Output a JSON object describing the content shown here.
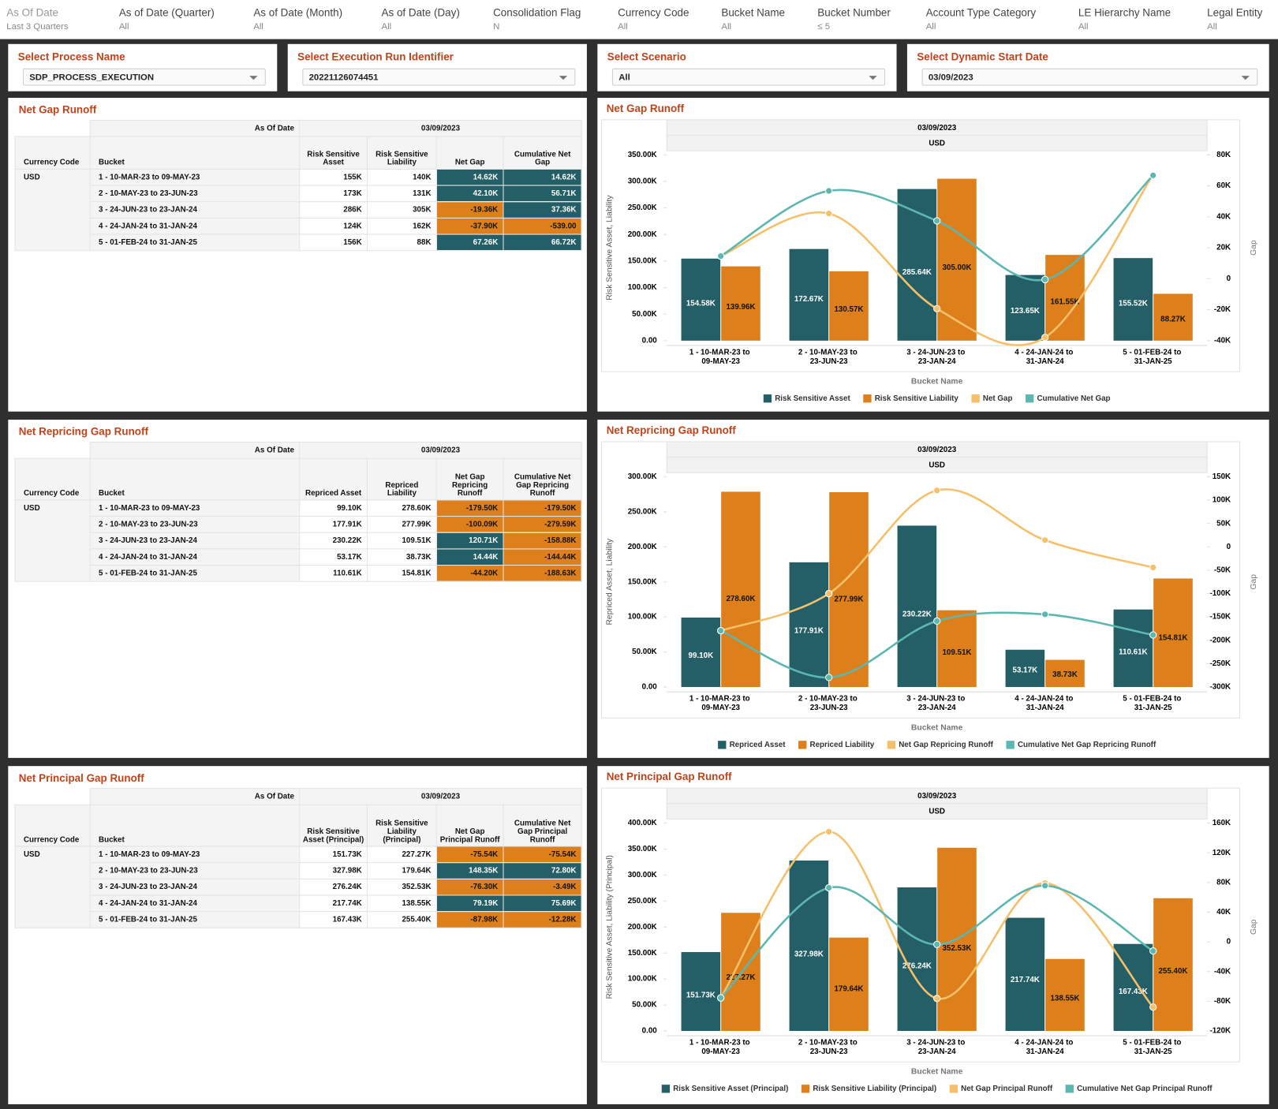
{
  "filters": [
    {
      "label": "As Of Date",
      "value": "Last 3 Quarters"
    },
    {
      "label": "As of Date (Quarter)",
      "value": "All"
    },
    {
      "label": "As of Date (Month)",
      "value": "All"
    },
    {
      "label": "As of Date (Day)",
      "value": "All"
    },
    {
      "label": "Consolidation Flag",
      "value": "N"
    },
    {
      "label": "Currency Code",
      "value": "All"
    },
    {
      "label": "Bucket Name",
      "value": "All"
    },
    {
      "label": "Bucket Number",
      "value": "≤ 5"
    },
    {
      "label": "Account Type Category",
      "value": "All"
    },
    {
      "label": "LE Hierarchy Name",
      "value": "All"
    },
    {
      "label": "Legal Entity",
      "value": "All"
    }
  ],
  "selectors": [
    {
      "label": "Select Process Name",
      "value": "SDP_PROCESS_EXECUTION"
    },
    {
      "label": "Select Execution Run Identifier",
      "value": "20221126074451"
    },
    {
      "label": "Select Scenario",
      "value": "All"
    },
    {
      "label": "Select Dynamic Start Date",
      "value": "03/09/2023"
    }
  ],
  "tables": [
    {
      "title": "Net Gap Runoff",
      "as_of_header": "As Of Date",
      "date": "03/09/2023",
      "currency_header": "Currency Code",
      "bucket_header": "Bucket",
      "columns": [
        "Risk Sensitive Asset",
        "Risk Sensitive Liability",
        "Net Gap",
        "Cumulative Net Gap"
      ],
      "currency": "USD",
      "rows": [
        {
          "bucket": "1 - 10-MAR-23 to 09-MAY-23",
          "cells": [
            "155K",
            "140K",
            "14.62K",
            "14.62K"
          ]
        },
        {
          "bucket": "2 - 10-MAY-23 to 23-JUN-23",
          "cells": [
            "173K",
            "131K",
            "42.10K",
            "56.71K"
          ]
        },
        {
          "bucket": "3 - 24-JUN-23 to 23-JAN-24",
          "cells": [
            "286K",
            "305K",
            "-19.36K",
            "37.36K"
          ]
        },
        {
          "bucket": "4 - 24-JAN-24 to 31-JAN-24",
          "cells": [
            "124K",
            "162K",
            "-37.90K",
            "-539.00"
          ]
        },
        {
          "bucket": "5 - 01-FEB-24 to 31-JAN-25",
          "cells": [
            "156K",
            "88K",
            "67.26K",
            "66.72K"
          ]
        }
      ]
    },
    {
      "title": "Net Repricing Gap Runoff",
      "as_of_header": "As Of Date",
      "date": "03/09/2023",
      "currency_header": "Currency Code",
      "bucket_header": "Bucket",
      "columns": [
        "Repriced Asset",
        "Repriced Liability",
        "Net Gap Repricing Runoff",
        "Cumulative Net Gap Repricing Runoff"
      ],
      "currency": "USD",
      "rows": [
        {
          "bucket": "1 - 10-MAR-23 to 09-MAY-23",
          "cells": [
            "99.10K",
            "278.60K",
            "-179.50K",
            "-179.50K"
          ]
        },
        {
          "bucket": "2 - 10-MAY-23 to 23-JUN-23",
          "cells": [
            "177.91K",
            "277.99K",
            "-100.09K",
            "-279.59K"
          ]
        },
        {
          "bucket": "3 - 24-JUN-23 to 23-JAN-24",
          "cells": [
            "230.22K",
            "109.51K",
            "120.71K",
            "-158.88K"
          ]
        },
        {
          "bucket": "4 - 24-JAN-24 to 31-JAN-24",
          "cells": [
            "53.17K",
            "38.73K",
            "14.44K",
            "-144.44K"
          ]
        },
        {
          "bucket": "5 - 01-FEB-24 to 31-JAN-25",
          "cells": [
            "110.61K",
            "154.81K",
            "-44.20K",
            "-188.63K"
          ]
        }
      ]
    },
    {
      "title": "Net Principal Gap Runoff",
      "as_of_header": "As Of Date",
      "date": "03/09/2023",
      "currency_header": "Currency Code",
      "bucket_header": "Bucket",
      "columns": [
        "Risk Sensitive Asset (Principal)",
        "Risk Sensitive Liability (Principal)",
        "Net Gap Principal Runoff",
        "Cumulative Net Gap Principal Runoff"
      ],
      "currency": "USD",
      "rows": [
        {
          "bucket": "1 - 10-MAR-23 to 09-MAY-23",
          "cells": [
            "151.73K",
            "227.27K",
            "-75.54K",
            "-75.54K"
          ]
        },
        {
          "bucket": "2 - 10-MAY-23 to 23-JUN-23",
          "cells": [
            "327.98K",
            "179.64K",
            "148.35K",
            "72.80K"
          ]
        },
        {
          "bucket": "3 - 24-JUN-23 to 23-JAN-24",
          "cells": [
            "276.24K",
            "352.53K",
            "-76.30K",
            "-3.49K"
          ]
        },
        {
          "bucket": "4 - 24-JAN-24 to 31-JAN-24",
          "cells": [
            "217.74K",
            "138.55K",
            "79.19K",
            "75.69K"
          ]
        },
        {
          "bucket": "5 - 01-FEB-24 to 31-JAN-25",
          "cells": [
            "167.43K",
            "255.40K",
            "-87.98K",
            "-12.28K"
          ]
        }
      ]
    }
  ],
  "chart_data": [
    {
      "type": "combo",
      "title": "Net Gap Runoff",
      "date": "03/09/2023",
      "currency": "USD",
      "y_label": "Risk Sensitive Asset, Liability",
      "y2_label": "Gap",
      "x_label": "Bucket Name",
      "smooth": true,
      "categories": [
        "1 - 10-MAR-23 to 09-MAY-23",
        "2 - 10-MAY-23 to 23-JUN-23",
        "3 - 24-JUN-23 to 23-JAN-24",
        "4 - 24-JAN-24 to 31-JAN-24",
        "5 - 01-FEB-24 to 31-JAN-25"
      ],
      "ylim": [
        0,
        350000
      ],
      "yticks": [
        {
          "value": 0,
          "label": "0.00"
        },
        {
          "value": 50000,
          "label": "50.00K"
        },
        {
          "value": 100000,
          "label": "100.00K"
        },
        {
          "value": 150000,
          "label": "150.00K"
        },
        {
          "value": 200000,
          "label": "200.00K"
        },
        {
          "value": 250000,
          "label": "250.00K"
        },
        {
          "value": 300000,
          "label": "300.00K"
        },
        {
          "value": 350000,
          "label": "350.00K"
        }
      ],
      "y2lim": [
        -40000,
        80000
      ],
      "y2ticks": [
        {
          "value": -40000,
          "label": "-40K"
        },
        {
          "value": -20000,
          "label": "-20K"
        },
        0,
        {
          "value": 20000,
          "label": "20K"
        },
        {
          "value": 40000,
          "label": "40K"
        },
        {
          "value": 60000,
          "label": "60K"
        },
        {
          "value": 80000,
          "label": "80K"
        }
      ],
      "series": [
        {
          "name": "Risk Sensitive Asset",
          "type": "bar",
          "color": "#245e66",
          "values": [
            154580,
            172670,
            285640,
            123650,
            155520
          ],
          "value_labels": [
            "154.58K",
            "172.67K",
            "285.64K",
            "123.65K",
            "155.52K"
          ]
        },
        {
          "name": "Risk Sensitive Liability",
          "type": "bar",
          "color": "#dd7f1a",
          "values": [
            139960,
            130570,
            305000,
            161550,
            88270
          ],
          "value_labels": [
            "139.96K",
            "130.57K",
            "305.00K",
            "161.55K",
            "88.27K"
          ]
        },
        {
          "name": "Net Gap",
          "type": "line",
          "axis": "y2",
          "color": "#f6c06a",
          "values": [
            14620,
            42100,
            -19360,
            -37900,
            67260
          ]
        },
        {
          "name": "Cumulative Net Gap",
          "type": "line",
          "axis": "y2",
          "color": "#5db7b1",
          "values": [
            14620,
            56710,
            37360,
            -539,
            66720
          ]
        }
      ]
    },
    {
      "type": "combo",
      "title": "Net Repricing Gap Runoff",
      "date": "03/09/2023",
      "currency": "USD",
      "y_label": "Repriced Asset, Liability",
      "y2_label": "Gap",
      "x_label": "Bucket Name",
      "smooth": true,
      "categories": [
        "1 - 10-MAR-23 to 09-MAY-23",
        "2 - 10-MAY-23 to 23-JUN-23",
        "3 - 24-JUN-23 to 23-JAN-24",
        "4 - 24-JAN-24 to 31-JAN-24",
        "5 - 01-FEB-24 to 31-JAN-25"
      ],
      "ylim": [
        0,
        300000
      ],
      "yticks": [
        {
          "value": 0,
          "label": "0.00"
        },
        {
          "value": 50000,
          "label": "50.00K"
        },
        {
          "value": 100000,
          "label": "100.00K"
        },
        {
          "value": 150000,
          "label": "150.00K"
        },
        {
          "value": 200000,
          "label": "200.00K"
        },
        {
          "value": 250000,
          "label": "250.00K"
        },
        {
          "value": 300000,
          "label": "300.00K"
        }
      ],
      "y2lim": [
        -300000,
        150000
      ],
      "y2ticks": [
        {
          "value": -300000,
          "label": "-300K"
        },
        {
          "value": -250000,
          "label": "-250K"
        },
        {
          "value": -200000,
          "label": "-200K"
        },
        {
          "value": -150000,
          "label": "-150K"
        },
        {
          "value": -100000,
          "label": "-100K"
        },
        {
          "value": -50000,
          "label": "-50K"
        },
        0,
        {
          "value": 50000,
          "label": "50K"
        },
        {
          "value": 100000,
          "label": "100K"
        },
        {
          "value": 150000,
          "label": "150K"
        }
      ],
      "series": [
        {
          "name": "Repriced Asset",
          "type": "bar",
          "color": "#245e66",
          "values": [
            99100,
            177910,
            230220,
            53170,
            110610
          ],
          "value_labels": [
            "99.10K",
            "177.91K",
            "230.22K",
            "53.17K",
            "110.61K"
          ]
        },
        {
          "name": "Repriced Liability",
          "type": "bar",
          "color": "#dd7f1a",
          "values": [
            278600,
            277990,
            109510,
            38730,
            154810
          ],
          "value_labels": [
            "278.60K",
            "277.99K",
            "109.51K",
            "38.73K",
            "154.81K"
          ]
        },
        {
          "name": "Net Gap Repricing Runoff",
          "type": "line",
          "axis": "y2",
          "color": "#f6c06a",
          "values": [
            -179500,
            -100090,
            120710,
            14440,
            -44200
          ]
        },
        {
          "name": "Cumulative Net Gap Repricing Runoff",
          "type": "line",
          "axis": "y2",
          "color": "#5db7b1",
          "values": [
            -179500,
            -279590,
            -158880,
            -144440,
            -188630
          ]
        }
      ]
    },
    {
      "type": "combo",
      "title": "Net Principal Gap Runoff",
      "date": "03/09/2023",
      "currency": "USD",
      "y_label": "Risk Sensitive Asset, Liability (Principal)",
      "y2_label": "Gap",
      "x_label": "Bucket Name",
      "smooth": true,
      "categories": [
        "1 - 10-MAR-23 to 09-MAY-23",
        "2 - 10-MAY-23 to 23-JUN-23",
        "3 - 24-JUN-23 to 23-JAN-24",
        "4 - 24-JAN-24 to 31-JAN-24",
        "5 - 01-FEB-24 to 31-JAN-25"
      ],
      "ylim": [
        0,
        400000
      ],
      "yticks": [
        {
          "value": 0,
          "label": "0.00"
        },
        {
          "value": 50000,
          "label": "50.00K"
        },
        {
          "value": 100000,
          "label": "100.00K"
        },
        {
          "value": 150000,
          "label": "150.00K"
        },
        {
          "value": 200000,
          "label": "200.00K"
        },
        {
          "value": 250000,
          "label": "250.00K"
        },
        {
          "value": 300000,
          "label": "300.00K"
        },
        {
          "value": 350000,
          "label": "350.00K"
        },
        {
          "value": 400000,
          "label": "400.00K"
        }
      ],
      "y2lim": [
        -120000,
        160000
      ],
      "y2ticks": [
        {
          "value": -120000,
          "label": "-120K"
        },
        {
          "value": -80000,
          "label": "-80K"
        },
        {
          "value": -40000,
          "label": "-40K"
        },
        0,
        {
          "value": 40000,
          "label": "40K"
        },
        {
          "value": 80000,
          "label": "80K"
        },
        {
          "value": 120000,
          "label": "120K"
        },
        {
          "value": 160000,
          "label": "160K"
        }
      ],
      "series": [
        {
          "name": "Risk Sensitive Asset (Principal)",
          "type": "bar",
          "color": "#245e66",
          "values": [
            151730,
            327980,
            276240,
            217740,
            167430
          ],
          "value_labels": [
            "151.73K",
            "327.98K",
            "276.24K",
            "217.74K",
            "167.43K"
          ]
        },
        {
          "name": "Risk Sensitive Liability (Principal)",
          "type": "bar",
          "color": "#dd7f1a",
          "values": [
            227270,
            179640,
            352530,
            138550,
            255400
          ],
          "value_labels": [
            "227.27K",
            "179.64K",
            "352.53K",
            "138.55K",
            "255.40K"
          ]
        },
        {
          "name": "Net Gap Principal Runoff",
          "type": "line",
          "axis": "y2",
          "color": "#f6c06a",
          "values": [
            -75540,
            148350,
            -76300,
            79190,
            -87980
          ]
        },
        {
          "name": "Cumulative Net Gap Principal Runoff",
          "type": "line",
          "axis": "y2",
          "color": "#5db7b1",
          "values": [
            -75540,
            72800,
            -3490,
            75690,
            -12280
          ]
        }
      ]
    }
  ]
}
